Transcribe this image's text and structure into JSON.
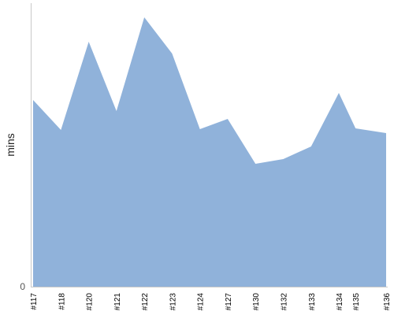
{
  "chart_data": {
    "type": "area",
    "categories": [
      "#117",
      "#118",
      "#120",
      "#121",
      "#122",
      "#123",
      "#124",
      "#127",
      "#130",
      "#132",
      "#133",
      "#134",
      "#135",
      "#136"
    ],
    "x_positions": [
      0,
      1,
      2,
      3,
      4,
      5,
      6,
      7,
      8,
      9,
      10,
      11,
      11.6,
      12.7
    ],
    "series": [
      {
        "values": [
          237,
          199,
          311,
          223,
          342,
          296,
          200,
          213,
          156,
          162,
          178,
          246,
          201,
          195
        ]
      }
    ],
    "ylabel": "mins",
    "ylim": [
      0,
      360
    ],
    "y_tick_labels": [
      "0"
    ],
    "fill_color": "#90b2da",
    "axis_color": "#c8c8c8",
    "grid": false,
    "legend": "none"
  }
}
